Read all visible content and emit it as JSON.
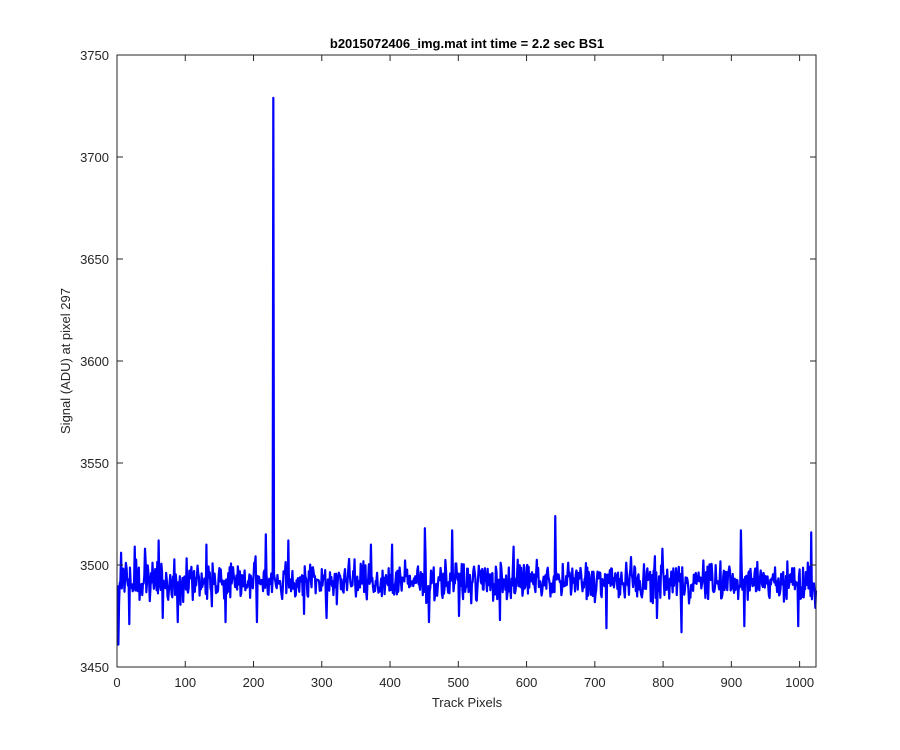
{
  "chart_data": {
    "type": "line",
    "title": "b2015072406_img.mat int time = 2.2 sec   BS1",
    "xlabel": "Track Pixels",
    "ylabel": "Signal (ADU) at pixel 297",
    "xlim": [
      0,
      1024
    ],
    "ylim": [
      3450,
      3750
    ],
    "x_ticks": [
      0,
      100,
      200,
      300,
      400,
      500,
      600,
      700,
      800,
      900,
      1000
    ],
    "y_ticks": [
      3450,
      3500,
      3550,
      3600,
      3650,
      3700,
      3750
    ],
    "grid": false,
    "series": [
      {
        "color": "#0000ff",
        "baseline": 3492,
        "noise_amplitude": 14,
        "n_points": 1024,
        "features": [
          {
            "x": 1,
            "y": 3461
          },
          {
            "x": 5,
            "y": 3506
          },
          {
            "x": 17,
            "y": 3471
          },
          {
            "x": 25,
            "y": 3509
          },
          {
            "x": 40,
            "y": 3508
          },
          {
            "x": 60,
            "y": 3512
          },
          {
            "x": 66,
            "y": 3474
          },
          {
            "x": 88,
            "y": 3472
          },
          {
            "x": 130,
            "y": 3510
          },
          {
            "x": 158,
            "y": 3472
          },
          {
            "x": 204,
            "y": 3472
          },
          {
            "x": 217,
            "y": 3515
          },
          {
            "x": 228,
            "y": 3729
          },
          {
            "x": 250,
            "y": 3512
          },
          {
            "x": 273,
            "y": 3476
          },
          {
            "x": 306,
            "y": 3474
          },
          {
            "x": 371,
            "y": 3510
          },
          {
            "x": 402,
            "y": 3510
          },
          {
            "x": 450,
            "y": 3518
          },
          {
            "x": 456,
            "y": 3472
          },
          {
            "x": 490,
            "y": 3517
          },
          {
            "x": 500,
            "y": 3475
          },
          {
            "x": 560,
            "y": 3473
          },
          {
            "x": 580,
            "y": 3509
          },
          {
            "x": 641,
            "y": 3524
          },
          {
            "x": 716,
            "y": 3469
          },
          {
            "x": 790,
            "y": 3474
          },
          {
            "x": 798,
            "y": 3508
          },
          {
            "x": 826,
            "y": 3467
          },
          {
            "x": 913,
            "y": 3517
          },
          {
            "x": 918,
            "y": 3470
          },
          {
            "x": 997,
            "y": 3470
          },
          {
            "x": 1016,
            "y": 3516
          },
          {
            "x": 1022,
            "y": 3479
          }
        ]
      }
    ]
  }
}
